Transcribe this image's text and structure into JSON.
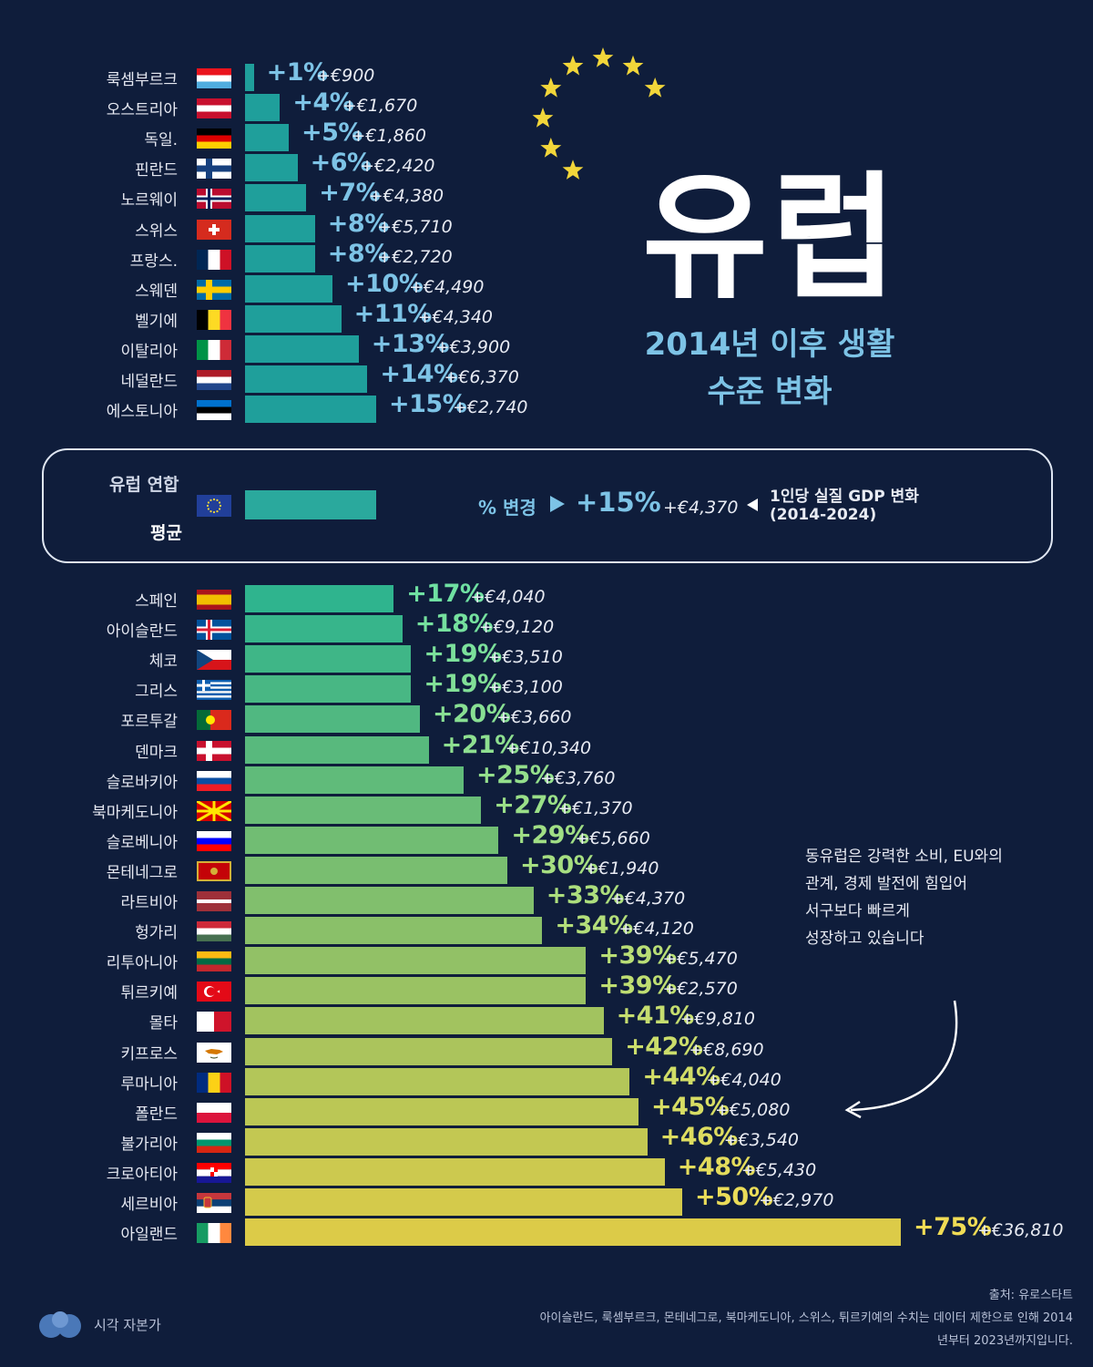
{
  "title": "유럽",
  "subtitle_line1": "2014년 이후 생활",
  "subtitle_line2": "수준 변화",
  "eu_average": {
    "label_top": "유럽 연합",
    "label_bottom": "평균",
    "change_label": "% 변경",
    "pct": "+15%",
    "eur": "+€4,370",
    "note_line1": "1인당 실질 GDP 변화",
    "note_line2": "(2014-2024)",
    "value": 15
  },
  "annotation": {
    "line1": "동유럽은 강력한 소비, EU와의",
    "line2": "관계, 경제 발전에 힘입어",
    "line3": "서구보다 빠르게",
    "line4": "성장하고 있습니다"
  },
  "footer": {
    "source": "출처: 유로스타트",
    "note1": "아이슬란드, 룩셈부르크, 몬테네그로, 북마케도니아, 스위스, 튀르키예의 수치는 데이터 제한으로 인해 2014",
    "note2": "년부터 2023년까지입니다.",
    "brand": "시각 자본가"
  },
  "chart_data": {
    "type": "bar",
    "orientation": "horizontal",
    "value_unit": "%",
    "top_group": [
      {
        "name": "룩셈부르크",
        "value": 1,
        "pct": "+1%",
        "eur": "+€900",
        "flag": "luxembourg"
      },
      {
        "name": "오스트리아",
        "value": 4,
        "pct": "+4%",
        "eur": "+€1,670",
        "flag": "austria"
      },
      {
        "name": "독일.",
        "value": 5,
        "pct": "+5%",
        "eur": "+€1,860",
        "flag": "germany"
      },
      {
        "name": "핀란드",
        "value": 6,
        "pct": "+6%",
        "eur": "+€2,420",
        "flag": "finland"
      },
      {
        "name": "노르웨이",
        "value": 7,
        "pct": "+7%",
        "eur": "+€4,380",
        "flag": "norway"
      },
      {
        "name": "스위스",
        "value": 8,
        "pct": "+8%",
        "eur": "+€5,710",
        "flag": "switzerland"
      },
      {
        "name": "프랑스.",
        "value": 8,
        "pct": "+8%",
        "eur": "+€2,720",
        "flag": "france"
      },
      {
        "name": "스웨덴",
        "value": 10,
        "pct": "+10%",
        "eur": "+€4,490",
        "flag": "sweden"
      },
      {
        "name": "벨기에",
        "value": 11,
        "pct": "+11%",
        "eur": "+€4,340",
        "flag": "belgium"
      },
      {
        "name": "이탈리아",
        "value": 13,
        "pct": "+13%",
        "eur": "+€3,900",
        "flag": "italy"
      },
      {
        "name": "네덜란드",
        "value": 14,
        "pct": "+14%",
        "eur": "+€6,370",
        "flag": "netherlands"
      },
      {
        "name": "에스토니아",
        "value": 15,
        "pct": "+15%",
        "eur": "+€2,740",
        "flag": "estonia"
      }
    ],
    "bottom_group": [
      {
        "name": "스페인",
        "value": 17,
        "pct": "+17%",
        "eur": "+€4,040",
        "flag": "spain"
      },
      {
        "name": "아이슬란드",
        "value": 18,
        "pct": "+18%",
        "eur": "+€9,120",
        "flag": "iceland"
      },
      {
        "name": "체코",
        "value": 19,
        "pct": "+19%",
        "eur": "+€3,510",
        "flag": "czechia"
      },
      {
        "name": "그리스",
        "value": 19,
        "pct": "+19%",
        "eur": "+€3,100",
        "flag": "greece"
      },
      {
        "name": "포르투갈",
        "value": 20,
        "pct": "+20%",
        "eur": "+€3,660",
        "flag": "portugal"
      },
      {
        "name": "덴마크",
        "value": 21,
        "pct": "+21%",
        "eur": "+€10,340",
        "flag": "denmark"
      },
      {
        "name": "슬로바키아",
        "value": 25,
        "pct": "+25%",
        "eur": "+€3,760",
        "flag": "slovakia"
      },
      {
        "name": "북마케도니아",
        "value": 27,
        "pct": "+27%",
        "eur": "+€1,370",
        "flag": "north-macedonia"
      },
      {
        "name": "슬로베니아",
        "value": 29,
        "pct": "+29%",
        "eur": "+€5,660",
        "flag": "slovenia"
      },
      {
        "name": "몬테네그로",
        "value": 30,
        "pct": "+30%",
        "eur": "+€1,940",
        "flag": "montenegro"
      },
      {
        "name": "라트비아",
        "value": 33,
        "pct": "+33%",
        "eur": "+€4,370",
        "flag": "latvia"
      },
      {
        "name": "헝가리",
        "value": 34,
        "pct": "+34%",
        "eur": "+€4,120",
        "flag": "hungary"
      },
      {
        "name": "리투아니아",
        "value": 39,
        "pct": "+39%",
        "eur": "+€5,470",
        "flag": "lithuania"
      },
      {
        "name": "튀르키예",
        "value": 39,
        "pct": "+39%",
        "eur": "+€2,570",
        "flag": "turkey"
      },
      {
        "name": "몰타",
        "value": 41,
        "pct": "+41%",
        "eur": "+€9,810",
        "flag": "malta"
      },
      {
        "name": "키프로스",
        "value": 42,
        "pct": "+42%",
        "eur": "+€8,690",
        "flag": "cyprus"
      },
      {
        "name": "루마니아",
        "value": 44,
        "pct": "+44%",
        "eur": "+€4,040",
        "flag": "romania"
      },
      {
        "name": "폴란드",
        "value": 45,
        "pct": "+45%",
        "eur": "+€5,080",
        "flag": "poland"
      },
      {
        "name": "불가리아",
        "value": 46,
        "pct": "+46%",
        "eur": "+€3,540",
        "flag": "bulgaria"
      },
      {
        "name": "크로아티아",
        "value": 48,
        "pct": "+48%",
        "eur": "+€5,430",
        "flag": "croatia"
      },
      {
        "name": "세르비아",
        "value": 50,
        "pct": "+50%",
        "eur": "+€2,970",
        "flag": "serbia"
      },
      {
        "name": "아일랜드",
        "value": 75,
        "pct": "+75%",
        "eur": "+€36,810",
        "flag": "ireland"
      }
    ]
  },
  "colors": {
    "background": "#0f1d3b",
    "top_bar": "#1f9f9b",
    "bottom_bar_start": "#2fb48e",
    "bottom_bar_end": "#dccb48",
    "top_pct": "#7dc3e6",
    "star": "#f2d63a"
  }
}
